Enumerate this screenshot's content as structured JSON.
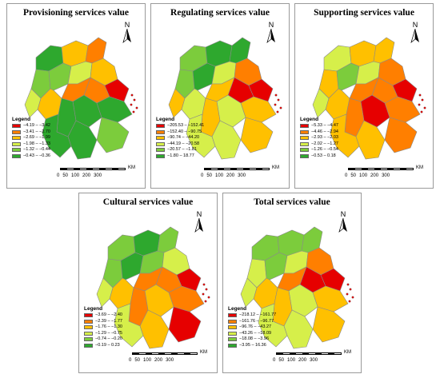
{
  "panels": [
    {
      "title": "Provisioning services value",
      "scheme": [
        "#e60000",
        "#ff7f00",
        "#ffc000",
        "#d6ef4a",
        "#7ccc3c",
        "#2ea82e"
      ],
      "regions": [
        5,
        2,
        1,
        4,
        4,
        3,
        2,
        1,
        0,
        1,
        2,
        3,
        5,
        5,
        5,
        4,
        5,
        5
      ],
      "legend": {
        "title": "Legend",
        "items": [
          "−4.19 – −3.42",
          "−3.41 – −2.70",
          "−2.69 – −1.99",
          "−1.98 – −1.33",
          "−1.32 – −0.44",
          "−0.43 – −0.36"
        ]
      }
    },
    {
      "title": "Regulating services value",
      "scheme": [
        "#e60000",
        "#ff7f00",
        "#ffc000",
        "#d6ef4a",
        "#7ccc3c",
        "#2ea82e"
      ],
      "regions": [
        4,
        5,
        5,
        4,
        5,
        3,
        1,
        0,
        0,
        2,
        3,
        2,
        2,
        3,
        2,
        2,
        3,
        3
      ],
      "legend": {
        "title": "Legend",
        "items": [
          "−205.53 – −152.41",
          "−152.40 – −90.75",
          "−90.74 – −44.20",
          "−44.19 – −20.58",
          "−20.57 – −1.81",
          "−1.80 – 18.77"
        ]
      }
    },
    {
      "title": "Supporting services value",
      "scheme": [
        "#e60000",
        "#ff7f00",
        "#ffc000",
        "#d6ef4a",
        "#7ccc3c",
        "#2ea82e"
      ],
      "regions": [
        3,
        2,
        2,
        2,
        4,
        3,
        1,
        1,
        0,
        1,
        2,
        3,
        1,
        0,
        1,
        1,
        2,
        2
      ],
      "legend": {
        "title": "Legend",
        "items": [
          "−5.33 – −4.47",
          "−4.46 – −2.94",
          "−2.93 – −2.03",
          "−2.02 – −1.27",
          "−1.26 – −0.54",
          "−0.53 – 0.18"
        ]
      }
    },
    {
      "title": "Cultural services value",
      "scheme": [
        "#e60000",
        "#ff7f00",
        "#ffc000",
        "#d6ef4a",
        "#7ccc3c",
        "#2ea82e"
      ],
      "regions": [
        4,
        5,
        4,
        4,
        5,
        4,
        3,
        1,
        0,
        1,
        2,
        3,
        1,
        2,
        1,
        0,
        2,
        3
      ],
      "legend": {
        "title": "Legend",
        "items": [
          "−3.69 – −2.40",
          "−2.39 – −1.77",
          "−1.76 – −1.30",
          "−1.29 – −0.75",
          "−0.74 – −0.20",
          "−0.19 – 0.23"
        ]
      }
    },
    {
      "title": "Total services value",
      "scheme": [
        "#e60000",
        "#ff7f00",
        "#ffc000",
        "#d6ef4a",
        "#7ccc3c",
        "#2ea82e"
      ],
      "regions": [
        4,
        4,
        4,
        3,
        4,
        3,
        1,
        0,
        0,
        1,
        2,
        3,
        2,
        3,
        2,
        2,
        3,
        3
      ],
      "legend": {
        "title": "Legend",
        "items": [
          "−218.12 – −161.77",
          "−161.76 – −96.77",
          "−96.76 – −43.27",
          "−43.26 – −18.09",
          "−18.08 – −3.96",
          "−3.95 – 16.36"
        ]
      }
    }
  ],
  "north_label": "N",
  "scale": {
    "unit": "KM",
    "ticks": [
      "0",
      "50",
      "100",
      "200",
      "300"
    ]
  }
}
